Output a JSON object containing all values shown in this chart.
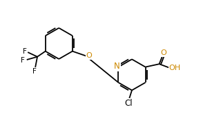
{
  "bg_color": "#ffffff",
  "lc": "#000000",
  "Nc": "#cc8800",
  "Oc": "#cc8800",
  "lw": 1.3,
  "fs": 8.0,
  "xlim": [
    0.0,
    8.5
  ],
  "ylim": [
    0.5,
    5.5
  ]
}
